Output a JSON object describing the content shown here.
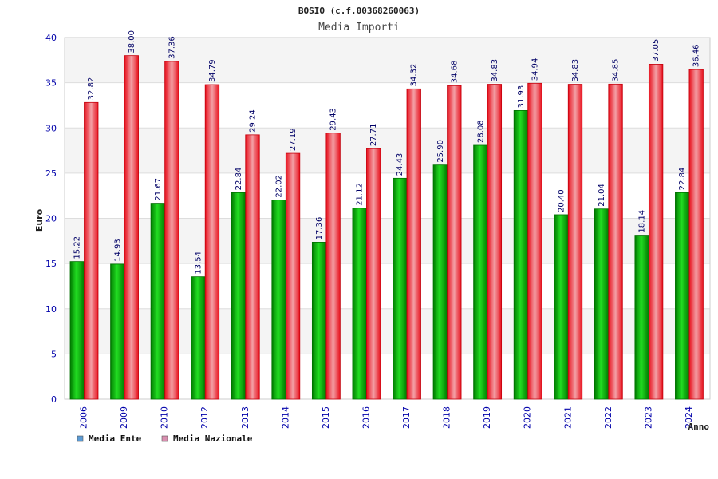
{
  "chart_data": {
    "type": "bar",
    "title": "BOSIO (c.f.00368260063)",
    "subtitle": "Media Importi",
    "xlabel": "Anno",
    "ylabel": "Euro",
    "ylim": [
      0,
      40
    ],
    "yticks": [
      "0",
      "5",
      "10",
      "15",
      "20",
      "25",
      "30",
      "35",
      "40"
    ],
    "grid": true,
    "legend_position": "bottom-left",
    "categories": [
      "2006",
      "2009",
      "2010",
      "2012",
      "2013",
      "2014",
      "2015",
      "2016",
      "2017",
      "2018",
      "2019",
      "2020",
      "2021",
      "2022",
      "2023",
      "2024"
    ],
    "series": [
      {
        "name": "Media Ente",
        "color": "#00b000",
        "legend_color": "#5b9bd5",
        "values": [
          15.22,
          14.93,
          21.67,
          13.54,
          22.84,
          22.02,
          17.36,
          21.12,
          24.43,
          25.9,
          28.08,
          31.93,
          20.4,
          21.04,
          18.14,
          22.84
        ],
        "labels": [
          "15.22",
          "14.93",
          "21.67",
          "13.54",
          "22.84",
          "22.02",
          "17.36",
          "21.12",
          "24.43",
          "25.90",
          "28.08",
          "31.93",
          "20.40",
          "21.04",
          "18.14",
          "22.84"
        ]
      },
      {
        "name": "Media Nazionale",
        "color": "#e8202a",
        "legend_color": "#d98fb0",
        "values": [
          32.82,
          38.0,
          37.36,
          34.79,
          29.24,
          27.19,
          29.43,
          27.71,
          34.32,
          34.68,
          34.83,
          34.94,
          34.83,
          34.85,
          37.05,
          36.46
        ],
        "labels": [
          "32.82",
          "38.00",
          "37.36",
          "34.79",
          "29.24",
          "27.19",
          "29.43",
          "27.71",
          "34.32",
          "34.68",
          "34.83",
          "34.94",
          "34.83",
          "34.85",
          "37.05",
          "36.46"
        ]
      }
    ]
  }
}
